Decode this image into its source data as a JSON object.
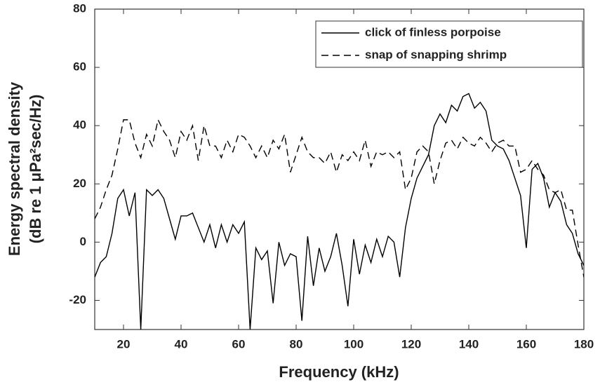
{
  "chart_data": {
    "type": "line",
    "xlabel": "Frequency (kHz)",
    "ylabel": [
      "Energy spectral density",
      "(dB re 1 μPa²sec/Hz)"
    ],
    "x": [
      10,
      12,
      14,
      16,
      18,
      20,
      22,
      24,
      26,
      28,
      30,
      32,
      34,
      36,
      38,
      40,
      42,
      44,
      46,
      48,
      50,
      52,
      54,
      56,
      58,
      60,
      62,
      64,
      66,
      68,
      70,
      72,
      74,
      76,
      78,
      80,
      82,
      84,
      86,
      88,
      90,
      92,
      94,
      96,
      98,
      100,
      102,
      104,
      106,
      108,
      110,
      112,
      114,
      116,
      118,
      120,
      122,
      124,
      126,
      128,
      130,
      132,
      134,
      136,
      138,
      140,
      142,
      144,
      146,
      148,
      150,
      152,
      154,
      156,
      158,
      160,
      162,
      164,
      166,
      168,
      170,
      172,
      174,
      176,
      178,
      180
    ],
    "series": [
      {
        "name": "click of finless porpoise",
        "color": "#000000",
        "style": "solid",
        "values": [
          -12,
          -7,
          -5,
          3,
          15,
          18,
          9,
          17,
          -30,
          18,
          16,
          18,
          15,
          8,
          1,
          9,
          9,
          10,
          5,
          0,
          6,
          -2,
          6,
          0,
          6,
          3,
          7,
          -30,
          -2,
          -6,
          -3,
          -21,
          0,
          -8,
          -4,
          -5,
          -27,
          2,
          -15,
          -2,
          -10,
          -5,
          3,
          -8,
          -22,
          1,
          -11,
          -1,
          -7,
          1,
          -5,
          2,
          0,
          -12,
          5,
          15,
          22,
          26,
          30,
          40,
          44,
          41,
          47,
          45,
          50,
          51,
          46,
          48,
          45,
          35,
          33,
          32,
          28,
          22,
          16,
          -2,
          25,
          27,
          22,
          12,
          17,
          14,
          6,
          3,
          -4,
          -8
        ]
      },
      {
        "name": "snap of snapping shrimp",
        "color": "#000000",
        "style": "dashed",
        "values": [
          8,
          12,
          18,
          23,
          32,
          42,
          42,
          34,
          29,
          37,
          33,
          42,
          38,
          35,
          29,
          38,
          35,
          40,
          28,
          40,
          33,
          33,
          29,
          35,
          31,
          37,
          36,
          33,
          29,
          33,
          29,
          35,
          32,
          37,
          24,
          30,
          36,
          31,
          29,
          29,
          27,
          31,
          24,
          30,
          28,
          31,
          28,
          35,
          26,
          31,
          30,
          31,
          29,
          31,
          18,
          22,
          31,
          33,
          31,
          20,
          28,
          34,
          35,
          32,
          36,
          34,
          33,
          36,
          34,
          31,
          34,
          35,
          33,
          33,
          24,
          25,
          28,
          25,
          23,
          18,
          17,
          18,
          11,
          11,
          -1,
          -12
        ]
      }
    ],
    "xlim": [
      10,
      180
    ],
    "xticks": [
      20,
      40,
      60,
      80,
      100,
      120,
      140,
      160,
      180
    ],
    "ylim": [
      -30,
      80
    ],
    "yticks": [
      -20,
      0,
      20,
      40,
      60,
      80
    ],
    "legend": "upper right"
  }
}
